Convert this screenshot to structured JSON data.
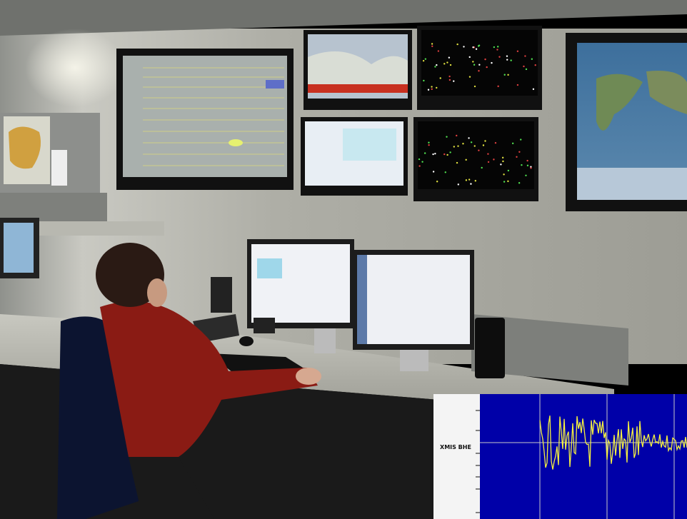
{
  "inset": {
    "station_label": "XMIS BHE"
  }
}
